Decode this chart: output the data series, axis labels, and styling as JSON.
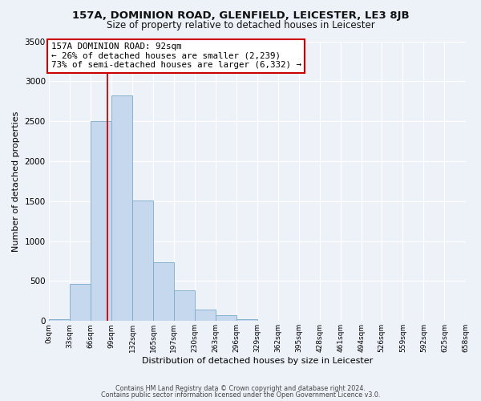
{
  "title": "157A, DOMINION ROAD, GLENFIELD, LEICESTER, LE3 8JB",
  "subtitle": "Size of property relative to detached houses in Leicester",
  "xlabel": "Distribution of detached houses by size in Leicester",
  "ylabel": "Number of detached properties",
  "bar_color": "#c5d8ed",
  "bar_edge_color": "#7aaac8",
  "bg_color": "#edf2f9",
  "plot_bg_color": "#edf2f9",
  "grid_color": "#ffffff",
  "annotation_box_color": "#ffffff",
  "annotation_box_edge": "#cc0000",
  "vline_color": "#cc0000",
  "vline_x": 92,
  "bin_edges": [
    0,
    33,
    66,
    99,
    132,
    165,
    197,
    230,
    263,
    296,
    329,
    362,
    395,
    428,
    461,
    494,
    526,
    559,
    592,
    625,
    658
  ],
  "bin_labels": [
    "0sqm",
    "33sqm",
    "66sqm",
    "99sqm",
    "132sqm",
    "165sqm",
    "197sqm",
    "230sqm",
    "263sqm",
    "296sqm",
    "329sqm",
    "362sqm",
    "395sqm",
    "428sqm",
    "461sqm",
    "494sqm",
    "526sqm",
    "559sqm",
    "592sqm",
    "625sqm",
    "658sqm"
  ],
  "bar_heights": [
    18,
    468,
    2500,
    2820,
    1510,
    740,
    385,
    148,
    78,
    18,
    0,
    0,
    0,
    0,
    0,
    0,
    0,
    0,
    0,
    0
  ],
  "ylim": [
    0,
    3500
  ],
  "yticks": [
    0,
    500,
    1000,
    1500,
    2000,
    2500,
    3000,
    3500
  ],
  "annotation_line1": "157A DOMINION ROAD: 92sqm",
  "annotation_line2": "← 26% of detached houses are smaller (2,239)",
  "annotation_line3": "73% of semi-detached houses are larger (6,332) →",
  "footer_line1": "Contains HM Land Registry data © Crown copyright and database right 2024.",
  "footer_line2": "Contains public sector information licensed under the Open Government Licence v3.0."
}
